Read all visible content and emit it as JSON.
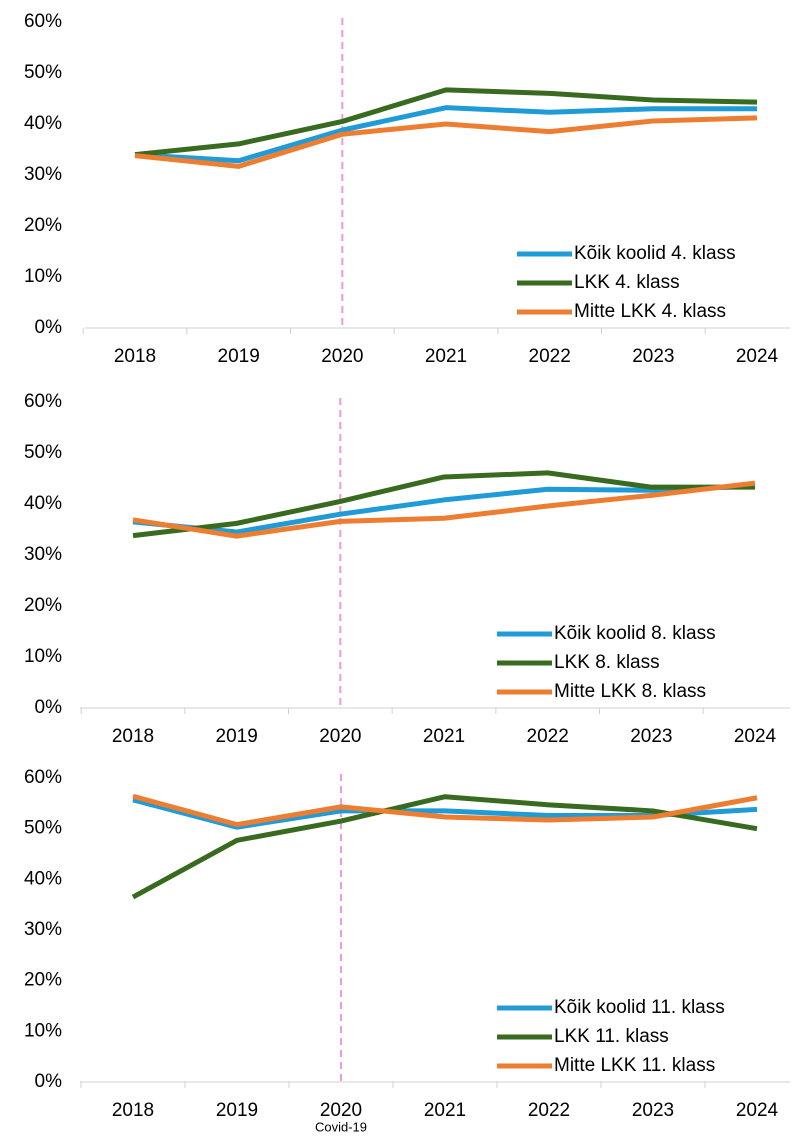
{
  "chart_data": [
    {
      "type": "line",
      "categories": [
        "2018",
        "2019",
        "2020",
        "2021",
        "2022",
        "2023",
        "2024"
      ],
      "series": [
        {
          "name": "Kõik koolid 4. klass",
          "color": "#1f9bd7",
          "values": [
            34,
            32.8,
            38.8,
            43.2,
            42.3,
            43,
            43
          ]
        },
        {
          "name": "LKK 4. klass",
          "color": "#386b1f",
          "values": [
            34,
            36.1,
            40.5,
            46.7,
            46,
            44.7,
            44.3
          ]
        },
        {
          "name": "Mitte LKK 4. klass",
          "color": "#ed7d31",
          "values": [
            33.8,
            31.7,
            38,
            40,
            38.5,
            40.6,
            41.2
          ]
        }
      ],
      "ylim": [
        0,
        60
      ],
      "yticks": [
        {
          "value": 0,
          "label": "0%"
        },
        {
          "value": 10,
          "label": "10%"
        },
        {
          "value": 20,
          "label": "20%"
        },
        {
          "value": 30,
          "label": "30%"
        },
        {
          "value": 40,
          "label": "40%"
        },
        {
          "value": 50,
          "label": "50%"
        },
        {
          "value": 60,
          "label": "60%"
        }
      ],
      "legend": "lower right",
      "vline": "2020"
    },
    {
      "type": "line",
      "categories": [
        "2018",
        "2019",
        "2020",
        "2021",
        "2022",
        "2023",
        "2024"
      ],
      "series": [
        {
          "name": "Kõik koolid 8. klass",
          "color": "#1f9bd7",
          "values": [
            36.5,
            34.5,
            38,
            40.8,
            42.9,
            42.7,
            43.5
          ]
        },
        {
          "name": "LKK 8. klass",
          "color": "#386b1f",
          "values": [
            33.8,
            36.2,
            40.5,
            45.3,
            46.1,
            43.3,
            43.3
          ]
        },
        {
          "name": "Mitte LKK 8. klass",
          "color": "#ed7d31",
          "values": [
            36.9,
            33.7,
            36.6,
            37.2,
            39.6,
            41.7,
            44.1
          ]
        }
      ],
      "ylim": [
        0,
        60
      ],
      "yticks": [
        {
          "value": 0,
          "label": "0%"
        },
        {
          "value": 10,
          "label": "10%"
        },
        {
          "value": 20,
          "label": "20%"
        },
        {
          "value": 30,
          "label": "30%"
        },
        {
          "value": 40,
          "label": "40%"
        },
        {
          "value": 50,
          "label": "50%"
        },
        {
          "value": 60,
          "label": "60%"
        }
      ],
      "legend": "lower right",
      "vline": "2020"
    },
    {
      "type": "line",
      "categories": [
        "2018",
        "2019",
        "2020",
        "2021",
        "2022",
        "2023",
        "2024"
      ],
      "series": [
        {
          "name": "Kõik koolid 11. klass",
          "color": "#1f9bd7",
          "values": [
            55.7,
            50.3,
            53.5,
            53.5,
            52.6,
            52.6,
            53.8
          ]
        },
        {
          "name": "LKK 11. klass",
          "color": "#386b1f",
          "values": [
            36.5,
            47.7,
            51.5,
            56.3,
            54.7,
            53.5,
            50
          ]
        },
        {
          "name": "Mitte LKK 11. klass",
          "color": "#ed7d31",
          "values": [
            56.4,
            50.8,
            54.3,
            52.3,
            51.7,
            52.3,
            56.1
          ]
        }
      ],
      "ylim": [
        0,
        60
      ],
      "yticks": [
        {
          "value": 0,
          "label": "0%"
        },
        {
          "value": 10,
          "label": "10%"
        },
        {
          "value": 20,
          "label": "20%"
        },
        {
          "value": 30,
          "label": "30%"
        },
        {
          "value": 40,
          "label": "40%"
        },
        {
          "value": 50,
          "label": "50%"
        },
        {
          "value": 60,
          "label": "60%"
        }
      ],
      "legend": "lower right",
      "vline": "2020",
      "annotation": "Covid-19"
    }
  ]
}
